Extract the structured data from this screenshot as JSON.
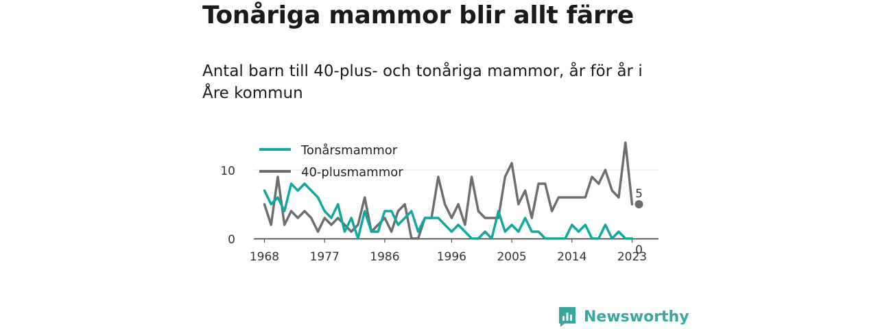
{
  "title": "Tonåriga mammor blir allt färre",
  "subtitle": "Antal barn till 40-plus- och tonåriga mammor, år för år i Åre kommun",
  "brand": {
    "name": "Newsworthy",
    "color": "#3aa6a0"
  },
  "colors": {
    "teen": "#13a89e",
    "plus40": "#6d6e71",
    "grid": "#dddddd",
    "axis": "#333333"
  },
  "chart_data": {
    "type": "line",
    "x": [
      1968,
      1969,
      1970,
      1971,
      1972,
      1973,
      1974,
      1975,
      1976,
      1977,
      1978,
      1979,
      1980,
      1981,
      1982,
      1983,
      1984,
      1985,
      1986,
      1987,
      1988,
      1989,
      1990,
      1991,
      1992,
      1993,
      1994,
      1995,
      1996,
      1997,
      1998,
      1999,
      2000,
      2001,
      2002,
      2003,
      2004,
      2005,
      2006,
      2007,
      2008,
      2009,
      2010,
      2011,
      2012,
      2013,
      2014,
      2015,
      2016,
      2017,
      2018,
      2019,
      2020,
      2021,
      2022,
      2023
    ],
    "series": [
      {
        "name": "Tonårsmammor",
        "values": [
          7,
          5,
          6,
          4,
          8,
          7,
          8,
          7,
          6,
          4,
          3,
          5,
          1,
          3,
          0,
          4,
          1,
          1,
          4,
          4,
          2,
          3,
          4,
          1,
          3,
          3,
          3,
          2,
          1,
          2,
          1,
          0,
          0,
          1,
          0,
          4,
          1,
          2,
          1,
          3,
          1,
          1,
          0,
          0,
          0,
          0,
          2,
          1,
          2,
          0,
          0,
          2,
          0,
          1,
          0,
          0
        ]
      },
      {
        "name": "40-plusmammor",
        "values": [
          5,
          2,
          9,
          2,
          4,
          3,
          4,
          3,
          1,
          3,
          2,
          3,
          2,
          1,
          2,
          6,
          1,
          2,
          3,
          1,
          4,
          5,
          0,
          0,
          3,
          3,
          9,
          5,
          3,
          5,
          2,
          9,
          4,
          3,
          3,
          3,
          9,
          11,
          5,
          7,
          3,
          8,
          8,
          4,
          6,
          6,
          6,
          6,
          6,
          9,
          8,
          10,
          7,
          6,
          14,
          5
        ]
      }
    ],
    "end_labels": {
      "Tonårsmammor": "0",
      "40-plusmammor": "5"
    },
    "ylim": [
      0,
      14
    ],
    "yticks": [
      "0",
      "10"
    ],
    "xticks": [
      "1968",
      "1977",
      "1986",
      "1996",
      "2005",
      "2014",
      "2023"
    ],
    "grid": true,
    "legend_position": "top-left"
  }
}
